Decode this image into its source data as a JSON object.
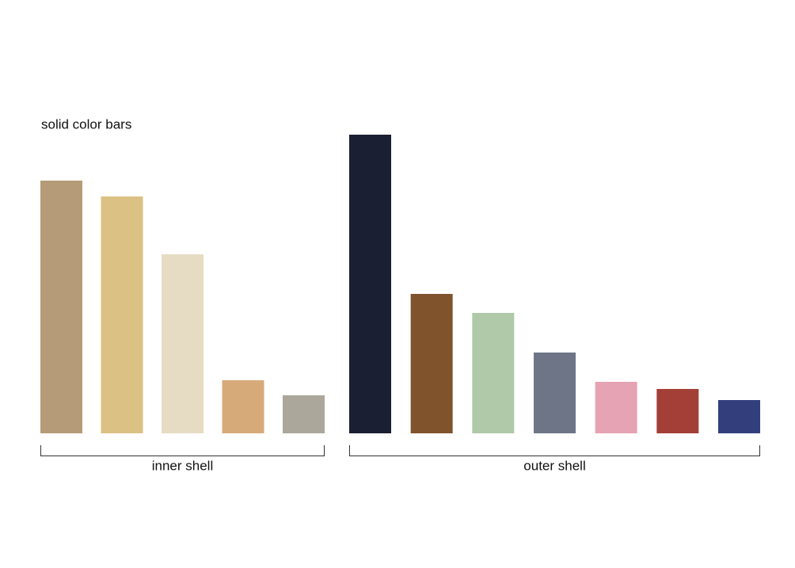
{
  "chart_data": {
    "type": "bar",
    "title": "solid color bars",
    "ylim": [
      0,
      400
    ],
    "groups": [
      {
        "name": "inner shell",
        "colors": [
          "#b59b77",
          "#dcc185",
          "#e6dcc3",
          "#d6ab79",
          "#aba79b"
        ],
        "values": [
          319,
          299,
          226,
          67,
          48
        ]
      },
      {
        "name": "outer shell",
        "colors": [
          "#1a1f33",
          "#80532d",
          "#b0c9a9",
          "#6e7587",
          "#e5a3b3",
          "#a33f36",
          "#333f7d"
        ],
        "values": [
          377,
          176,
          152,
          102,
          65,
          56,
          42
        ]
      }
    ]
  }
}
